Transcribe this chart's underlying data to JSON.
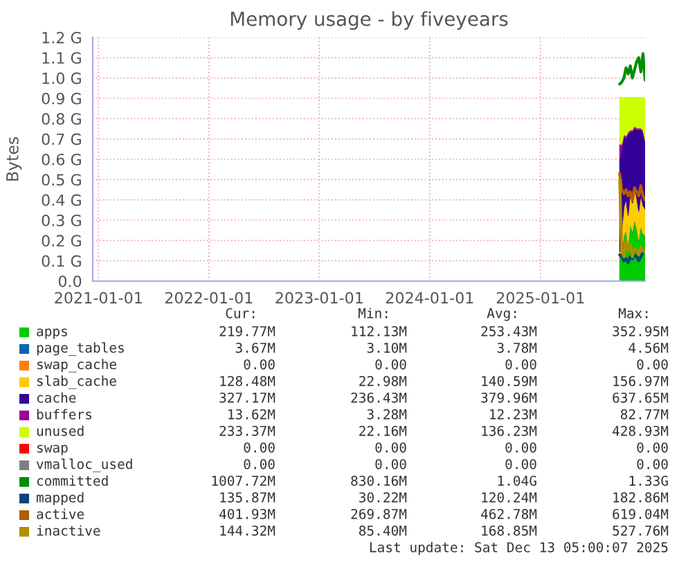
{
  "chart_data": {
    "type": "area",
    "stacked": true,
    "title": "Memory usage - by fiveyears",
    "ylabel": "Bytes",
    "x": [
      "2025-09-20",
      "2025-09-27",
      "2025-10-04",
      "2025-10-11",
      "2025-10-18",
      "2025-10-25",
      "2025-11-01",
      "2025-11-08",
      "2025-11-15",
      "2025-11-22",
      "2025-11-29",
      "2025-12-06",
      "2025-12-13"
    ],
    "xlim": [
      "2020-12-13",
      "2025-12-13"
    ],
    "xticks": [
      "2021-01-01",
      "2022-01-01",
      "2023-01-01",
      "2024-01-01",
      "2025-01-01"
    ],
    "ylim": [
      0,
      1.2
    ],
    "yticks": [
      {
        "value": 0,
        "label": "0.0"
      },
      {
        "value": 0.1,
        "label": "0.1 G"
      },
      {
        "value": 0.2,
        "label": "0.2 G"
      },
      {
        "value": 0.3,
        "label": "0.3 G"
      },
      {
        "value": 0.4,
        "label": "0.4 G"
      },
      {
        "value": 0.5,
        "label": "0.5 G"
      },
      {
        "value": 0.6,
        "label": "0.6 G"
      },
      {
        "value": 0.7,
        "label": "0.7 G"
      },
      {
        "value": 0.8,
        "label": "0.8 G"
      },
      {
        "value": 0.9,
        "label": "0.9 G"
      },
      {
        "value": 1.0,
        "label": "1.0 G"
      },
      {
        "value": 1.1,
        "label": "1.1 G"
      },
      {
        "value": 1.2,
        "label": "1.2 G"
      }
    ],
    "grid": true,
    "legend": "bottom",
    "series": [
      {
        "name": "apps",
        "color": "#00cc00",
        "values": [
          0.12,
          0.15,
          0.22,
          0.25,
          0.18,
          0.28,
          0.24,
          0.3,
          0.26,
          0.2,
          0.27,
          0.23,
          0.22
        ]
      },
      {
        "name": "page_tables",
        "color": "#0066b3",
        "values": [
          0.004,
          0.004,
          0.004,
          0.004,
          0.004,
          0.004,
          0.004,
          0.004,
          0.004,
          0.004,
          0.004,
          0.004,
          0.004
        ]
      },
      {
        "name": "swap_cache",
        "color": "#ff8000",
        "values": [
          null,
          null,
          null,
          null,
          null,
          null,
          null,
          null,
          null,
          null,
          null,
          null,
          null
        ]
      },
      {
        "name": "slab_cache",
        "color": "#ffcc00",
        "values": [
          0.02,
          0.1,
          0.14,
          0.15,
          0.14,
          0.15,
          0.14,
          0.15,
          0.15,
          0.14,
          0.15,
          0.14,
          0.13
        ]
      },
      {
        "name": "cache",
        "color": "#330099",
        "values": [
          0.45,
          0.4,
          0.35,
          0.3,
          0.4,
          0.3,
          0.35,
          0.3,
          0.33,
          0.4,
          0.32,
          0.36,
          0.33
        ]
      },
      {
        "name": "buffers",
        "color": "#990099",
        "values": [
          0.08,
          0.02,
          0.01,
          0.01,
          0.01,
          0.01,
          0.01,
          0.01,
          0.01,
          0.01,
          0.01,
          0.01,
          0.014
        ]
      },
      {
        "name": "unused",
        "color": "#ccff00",
        "values": [
          0.23,
          0.23,
          0.18,
          0.19,
          0.17,
          0.16,
          0.16,
          0.14,
          0.15,
          0.15,
          0.15,
          0.16,
          0.2
        ]
      },
      {
        "name": "swap",
        "color": "#ff0000",
        "values": [
          null,
          null,
          null,
          null,
          null,
          null,
          null,
          null,
          null,
          null,
          null,
          null,
          null
        ]
      },
      {
        "name": "vmalloc_used",
        "color": "#808080",
        "values": [
          null,
          null,
          null,
          null,
          null,
          null,
          null,
          null,
          null,
          null,
          null,
          null,
          null
        ]
      },
      {
        "name": "committed",
        "type": "line",
        "color": "#008f00",
        "values": [
          0.97,
          0.98,
          1.0,
          1.05,
          1.02,
          1.06,
          1.0,
          1.04,
          1.08,
          1.1,
          1.03,
          1.12,
          0.99
        ]
      },
      {
        "name": "mapped",
        "type": "line",
        "color": "#00487d",
        "values": [
          0.13,
          0.12,
          0.1,
          0.11,
          0.09,
          0.12,
          0.11,
          0.13,
          0.12,
          0.1,
          0.12,
          0.14,
          0.14
        ]
      },
      {
        "name": "active",
        "type": "line",
        "color": "#b35a00",
        "values": [
          0.53,
          0.45,
          0.43,
          0.45,
          0.42,
          0.44,
          0.4,
          0.46,
          0.44,
          0.42,
          0.47,
          0.42,
          0.4
        ]
      },
      {
        "name": "inactive",
        "type": "line",
        "color": "#b38f00",
        "values": [
          0.5,
          0.15,
          0.12,
          0.2,
          0.15,
          0.18,
          0.12,
          0.16,
          0.15,
          0.13,
          0.17,
          0.15,
          0.14
        ]
      }
    ],
    "annotations": [
      "Cur:",
      "Min:",
      "Avg:",
      "Max:",
      "219.77M",
      "112.13M",
      "253.43M",
      "352.95M",
      "3.67M",
      "3.10M",
      "3.78M",
      "4.56M",
      "0.00",
      "0.00",
      "0.00",
      "0.00",
      "128.48M",
      "22.98M",
      "140.59M",
      "156.97M",
      "327.17M",
      "236.43M",
      "379.96M",
      "637.65M",
      "13.62M",
      "3.28M",
      "12.23M",
      "82.77M",
      "233.37M",
      "22.16M",
      "136.23M",
      "428.93M",
      "0.00",
      "0.00",
      "0.00",
      "0.00",
      "0.00",
      "0.00",
      "0.00",
      "0.00",
      "1007.72M",
      "830.16M",
      "1.04G",
      "1.33G",
      "135.87M",
      "30.22M",
      "120.24M",
      "182.86M",
      "401.93M",
      "269.87M",
      "462.78M",
      "619.04M",
      "144.32M",
      "85.40M",
      "168.85M",
      "527.76M",
      "Last update: Sat Dec 13 05:00:07 2025"
    ]
  }
}
